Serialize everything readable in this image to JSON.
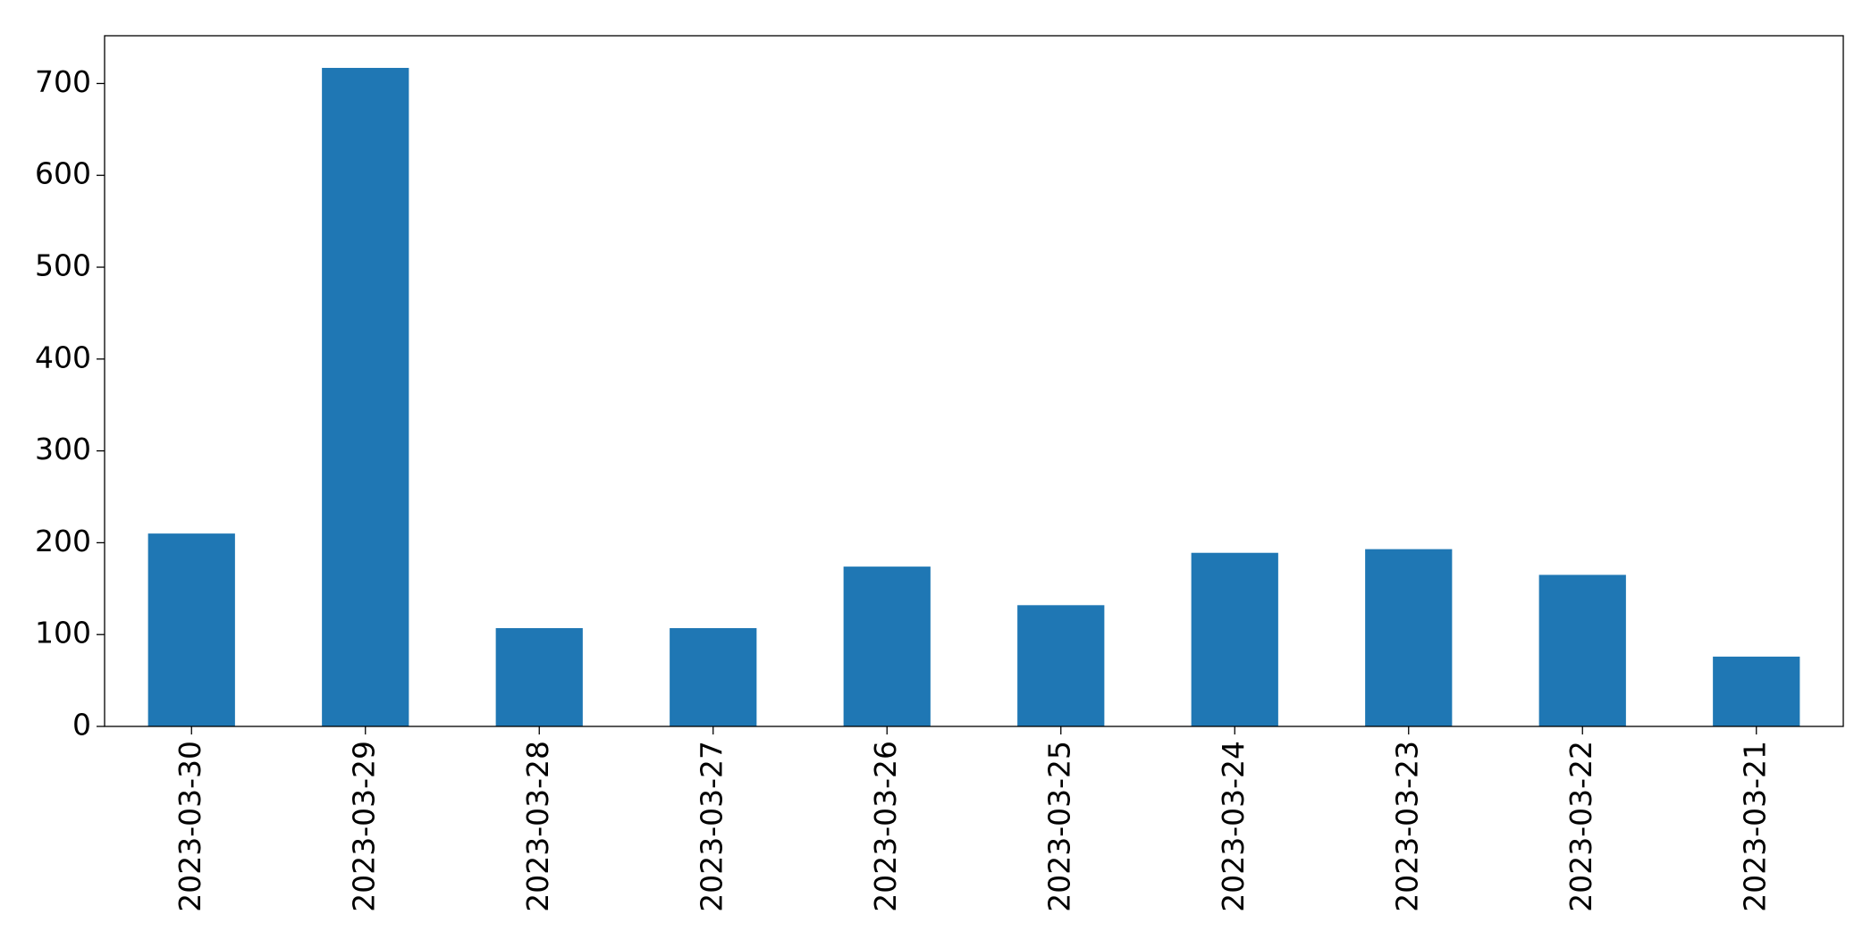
{
  "chart_data": {
    "type": "bar",
    "categories": [
      "2023-03-30",
      "2023-03-29",
      "2023-03-28",
      "2023-03-27",
      "2023-03-26",
      "2023-03-25",
      "2023-03-24",
      "2023-03-23",
      "2023-03-22",
      "2023-03-21"
    ],
    "values": [
      210,
      717,
      107,
      107,
      174,
      132,
      189,
      193,
      165,
      76
    ],
    "color": "#1f77b4",
    "ylim": [
      0,
      752
    ],
    "yticks": [
      0,
      100,
      200,
      300,
      400,
      500,
      600,
      700
    ],
    "grid": false
  }
}
